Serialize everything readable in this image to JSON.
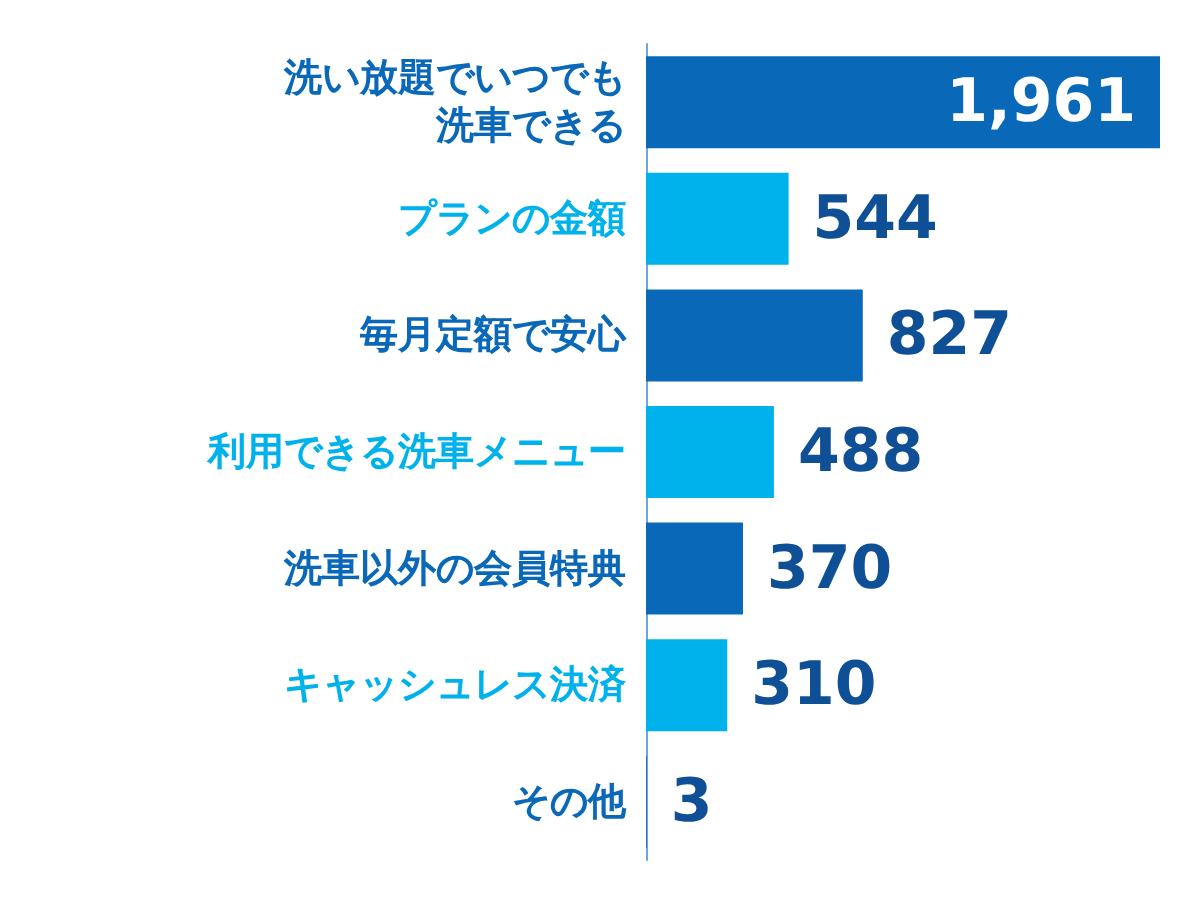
{
  "chart_data": {
    "type": "bar",
    "orientation": "horizontal",
    "categories": [
      "洗い放題でいつでも洗車できる",
      "プランの金額",
      "毎月定額で安心",
      "利用できる洗車メニュー",
      "洗車以外の会員特典",
      "キャッシュレス決済",
      "その他"
    ],
    "values": [
      1961,
      544,
      827,
      488,
      370,
      310,
      3
    ],
    "colors": [
      "#0a68b8",
      "#00b2ec",
      "#0a68b8",
      "#00b2ec",
      "#0a68b8",
      "#00b2ec",
      "#0a68b8"
    ],
    "value_labels": [
      "1,961",
      "544",
      "827",
      "488",
      "370",
      "310",
      "3"
    ]
  }
}
